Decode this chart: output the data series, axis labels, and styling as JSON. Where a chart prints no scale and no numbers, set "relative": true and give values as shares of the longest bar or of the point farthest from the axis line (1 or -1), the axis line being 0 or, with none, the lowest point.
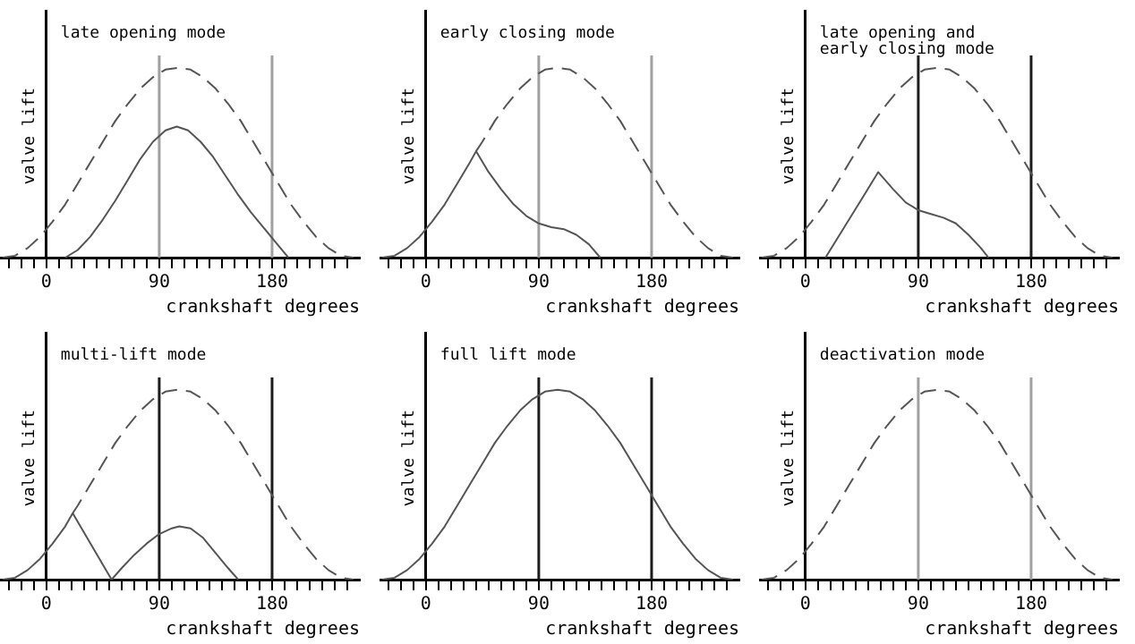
{
  "chart_data": [
    {
      "type": "line",
      "title": "late opening mode",
      "xlabel": "crankshaft degrees",
      "ylabel": "valve lift",
      "relative": true,
      "xlim": [
        -37,
        250
      ],
      "xticks": [
        {
          "value": -30,
          "label": null
        },
        {
          "value": -20,
          "label": null
        },
        {
          "value": -10,
          "label": null
        },
        0,
        {
          "value": 10,
          "label": null
        },
        {
          "value": 20,
          "label": null
        },
        {
          "value": 30,
          "label": null
        },
        {
          "value": 40,
          "label": null
        },
        {
          "value": 50,
          "label": null
        },
        {
          "value": 60,
          "label": null
        },
        {
          "value": 70,
          "label": null
        },
        {
          "value": 80,
          "label": null
        },
        90,
        {
          "value": 100,
          "label": null
        },
        {
          "value": 110,
          "label": null
        },
        {
          "value": 120,
          "label": null
        },
        {
          "value": 130,
          "label": null
        },
        {
          "value": 140,
          "label": null
        },
        {
          "value": 150,
          "label": null
        },
        {
          "value": 160,
          "label": null
        },
        {
          "value": 170,
          "label": null
        },
        180,
        {
          "value": 190,
          "label": null
        },
        {
          "value": 200,
          "label": null
        },
        {
          "value": 210,
          "label": null
        },
        {
          "value": 220,
          "label": null
        },
        {
          "value": 230,
          "label": null
        },
        {
          "value": 240,
          "label": null
        }
      ],
      "series": [
        {
          "color": "#555555",
          "line_style": "dashed",
          "x": [
            -35,
            -25,
            -15,
            -5,
            5,
            15,
            25,
            35,
            45,
            55,
            65,
            75,
            85,
            95,
            105,
            115,
            125,
            135,
            145,
            155,
            165,
            175,
            185,
            195,
            205,
            215,
            225,
            235,
            245
          ],
          "values": [
            0,
            0.01,
            0.05,
            0.11,
            0.19,
            0.28,
            0.39,
            0.5,
            0.61,
            0.72,
            0.81,
            0.89,
            0.95,
            0.99,
            1,
            0.99,
            0.95,
            0.89,
            0.81,
            0.72,
            0.61,
            0.5,
            0.39,
            0.28,
            0.19,
            0.11,
            0.05,
            0.01,
            0
          ]
        },
        {
          "color": "#555555",
          "line_style": "solid",
          "x": [
            15,
            25,
            35,
            45,
            55,
            65,
            75,
            85,
            95,
            104,
            113,
            123,
            133,
            143,
            153,
            163,
            173,
            183,
            193
          ],
          "values": [
            0,
            0.04,
            0.11,
            0.2,
            0.3,
            0.41,
            0.52,
            0.61,
            0.67,
            0.69,
            0.67,
            0.61,
            0.53,
            0.43,
            0.33,
            0.24,
            0.16,
            0.08,
            0
          ]
        }
      ],
      "ref_lines": [
        {
          "axis": "x",
          "value": 90,
          "color": "#a0a0a0"
        },
        {
          "axis": "x",
          "value": 180,
          "color": "#a0a0a0"
        }
      ]
    },
    {
      "type": "line",
      "title": "early closing mode",
      "xlabel": "crankshaft degrees",
      "ylabel": "valve lift",
      "relative": true,
      "xlim": [
        -37,
        250
      ],
      "xticks": [
        {
          "value": -30,
          "label": null
        },
        {
          "value": -20,
          "label": null
        },
        {
          "value": -10,
          "label": null
        },
        0,
        {
          "value": 10,
          "label": null
        },
        {
          "value": 20,
          "label": null
        },
        {
          "value": 30,
          "label": null
        },
        {
          "value": 40,
          "label": null
        },
        {
          "value": 50,
          "label": null
        },
        {
          "value": 60,
          "label": null
        },
        {
          "value": 70,
          "label": null
        },
        {
          "value": 80,
          "label": null
        },
        90,
        {
          "value": 100,
          "label": null
        },
        {
          "value": 110,
          "label": null
        },
        {
          "value": 120,
          "label": null
        },
        {
          "value": 130,
          "label": null
        },
        {
          "value": 140,
          "label": null
        },
        {
          "value": 150,
          "label": null
        },
        {
          "value": 160,
          "label": null
        },
        {
          "value": 170,
          "label": null
        },
        180,
        {
          "value": 190,
          "label": null
        },
        {
          "value": 200,
          "label": null
        },
        {
          "value": 210,
          "label": null
        },
        {
          "value": 220,
          "label": null
        },
        {
          "value": 230,
          "label": null
        },
        {
          "value": 240,
          "label": null
        }
      ],
      "series": [
        {
          "color": "#555555",
          "line_style": "dashed",
          "x": [
            40,
            45,
            55,
            65,
            75,
            85,
            95,
            105,
            115,
            125,
            135,
            145,
            155,
            165,
            175,
            185,
            195,
            205,
            215,
            225,
            235,
            245
          ],
          "values": [
            0.56,
            0.61,
            0.72,
            0.81,
            0.89,
            0.95,
            0.99,
            1,
            0.99,
            0.95,
            0.89,
            0.81,
            0.72,
            0.61,
            0.5,
            0.39,
            0.28,
            0.19,
            0.11,
            0.05,
            0.01,
            0
          ]
        },
        {
          "color": "#555555",
          "line_style": "solid",
          "x": [
            -35,
            -25,
            -15,
            -5,
            5,
            15,
            25,
            35,
            40,
            50,
            60,
            70,
            80,
            90,
            100,
            110,
            120,
            130,
            139
          ],
          "values": [
            0,
            0.01,
            0.05,
            0.11,
            0.19,
            0.28,
            0.39,
            0.5,
            0.56,
            0.45,
            0.36,
            0.28,
            0.22,
            0.18,
            0.16,
            0.15,
            0.12,
            0.07,
            0
          ]
        }
      ],
      "ref_lines": [
        {
          "axis": "x",
          "value": 90,
          "color": "#a0a0a0"
        },
        {
          "axis": "x",
          "value": 180,
          "color": "#a0a0a0"
        }
      ]
    },
    {
      "type": "line",
      "title": "late opening and\nearly closing mode",
      "xlabel": "crankshaft degrees",
      "ylabel": "valve lift",
      "relative": true,
      "xlim": [
        -37,
        250
      ],
      "xticks": [
        {
          "value": -30,
          "label": null
        },
        {
          "value": -20,
          "label": null
        },
        {
          "value": -10,
          "label": null
        },
        0,
        {
          "value": 10,
          "label": null
        },
        {
          "value": 20,
          "label": null
        },
        {
          "value": 30,
          "label": null
        },
        {
          "value": 40,
          "label": null
        },
        {
          "value": 50,
          "label": null
        },
        {
          "value": 60,
          "label": null
        },
        {
          "value": 70,
          "label": null
        },
        {
          "value": 80,
          "label": null
        },
        90,
        {
          "value": 100,
          "label": null
        },
        {
          "value": 110,
          "label": null
        },
        {
          "value": 120,
          "label": null
        },
        {
          "value": 130,
          "label": null
        },
        {
          "value": 140,
          "label": null
        },
        {
          "value": 150,
          "label": null
        },
        {
          "value": 160,
          "label": null
        },
        {
          "value": 170,
          "label": null
        },
        180,
        {
          "value": 190,
          "label": null
        },
        {
          "value": 200,
          "label": null
        },
        {
          "value": 210,
          "label": null
        },
        {
          "value": 220,
          "label": null
        },
        {
          "value": 230,
          "label": null
        },
        {
          "value": 240,
          "label": null
        }
      ],
      "series": [
        {
          "color": "#555555",
          "line_style": "dashed",
          "x": [
            -35,
            -25,
            -15,
            -5,
            5,
            15,
            25,
            35,
            45,
            55,
            65,
            75,
            85,
            95,
            105,
            115,
            125,
            135,
            145,
            155,
            165,
            175,
            185,
            195,
            205,
            215,
            225,
            235,
            245
          ],
          "values": [
            0,
            0.01,
            0.05,
            0.11,
            0.19,
            0.28,
            0.39,
            0.5,
            0.61,
            0.72,
            0.81,
            0.89,
            0.95,
            0.99,
            1,
            0.99,
            0.95,
            0.89,
            0.81,
            0.72,
            0.61,
            0.5,
            0.39,
            0.28,
            0.19,
            0.11,
            0.05,
            0.01,
            0
          ]
        },
        {
          "color": "#555555",
          "line_style": "solid",
          "x": [
            16,
            30,
            45,
            58,
            70,
            80,
            90,
            100,
            110,
            120,
            130,
            140,
            146
          ],
          "values": [
            0,
            0.15,
            0.31,
            0.45,
            0.36,
            0.29,
            0.25,
            0.23,
            0.21,
            0.18,
            0.12,
            0.05,
            0
          ]
        }
      ],
      "ref_lines": [
        {
          "axis": "x",
          "value": 90,
          "color": "#1c1c1c"
        },
        {
          "axis": "x",
          "value": 180,
          "color": "#1c1c1c"
        }
      ]
    },
    {
      "type": "line",
      "title": "multi-lift mode",
      "xlabel": "crankshaft degrees",
      "ylabel": "valve lift",
      "relative": true,
      "xlim": [
        -37,
        250
      ],
      "xticks": [
        {
          "value": -30,
          "label": null
        },
        {
          "value": -20,
          "label": null
        },
        {
          "value": -10,
          "label": null
        },
        0,
        {
          "value": 10,
          "label": null
        },
        {
          "value": 20,
          "label": null
        },
        {
          "value": 30,
          "label": null
        },
        {
          "value": 40,
          "label": null
        },
        {
          "value": 50,
          "label": null
        },
        {
          "value": 60,
          "label": null
        },
        {
          "value": 70,
          "label": null
        },
        {
          "value": 80,
          "label": null
        },
        90,
        {
          "value": 100,
          "label": null
        },
        {
          "value": 110,
          "label": null
        },
        {
          "value": 120,
          "label": null
        },
        {
          "value": 130,
          "label": null
        },
        {
          "value": 140,
          "label": null
        },
        {
          "value": 150,
          "label": null
        },
        {
          "value": 160,
          "label": null
        },
        {
          "value": 170,
          "label": null
        },
        180,
        {
          "value": 190,
          "label": null
        },
        {
          "value": 200,
          "label": null
        },
        {
          "value": 210,
          "label": null
        },
        {
          "value": 220,
          "label": null
        },
        {
          "value": 230,
          "label": null
        },
        {
          "value": 240,
          "label": null
        }
      ],
      "series": [
        {
          "color": "#555555",
          "line_style": "dashed",
          "x": [
            21,
            25,
            35,
            45,
            55,
            65,
            75,
            85,
            95,
            105,
            115,
            125,
            135,
            145,
            155,
            165,
            175,
            185,
            195,
            205,
            215,
            225,
            235,
            245
          ],
          "values": [
            0.35,
            0.39,
            0.5,
            0.61,
            0.72,
            0.81,
            0.89,
            0.95,
            0.99,
            1,
            0.99,
            0.95,
            0.89,
            0.81,
            0.72,
            0.61,
            0.5,
            0.39,
            0.28,
            0.19,
            0.11,
            0.05,
            0.01,
            0
          ]
        },
        {
          "color": "#555555",
          "line_style": "solid",
          "x": [
            -35,
            -25,
            -15,
            -5,
            5,
            15,
            21,
            52,
            60,
            70,
            80,
            90,
            100,
            106,
            115,
            125,
            135,
            145,
            153
          ],
          "values": [
            0,
            0.01,
            0.05,
            0.11,
            0.19,
            0.28,
            0.35,
            0,
            0.06,
            0.13,
            0.19,
            0.24,
            0.27,
            0.28,
            0.27,
            0.22,
            0.14,
            0.06,
            0
          ]
        }
      ],
      "ref_lines": [
        {
          "axis": "x",
          "value": 90,
          "color": "#1c1c1c"
        },
        {
          "axis": "x",
          "value": 180,
          "color": "#1c1c1c"
        }
      ]
    },
    {
      "type": "line",
      "title": "full lift mode",
      "xlabel": "crankshaft degrees",
      "ylabel": "valve lift",
      "relative": true,
      "xlim": [
        -37,
        250
      ],
      "xticks": [
        {
          "value": -30,
          "label": null
        },
        {
          "value": -20,
          "label": null
        },
        {
          "value": -10,
          "label": null
        },
        0,
        {
          "value": 10,
          "label": null
        },
        {
          "value": 20,
          "label": null
        },
        {
          "value": 30,
          "label": null
        },
        {
          "value": 40,
          "label": null
        },
        {
          "value": 50,
          "label": null
        },
        {
          "value": 60,
          "label": null
        },
        {
          "value": 70,
          "label": null
        },
        {
          "value": 80,
          "label": null
        },
        90,
        {
          "value": 100,
          "label": null
        },
        {
          "value": 110,
          "label": null
        },
        {
          "value": 120,
          "label": null
        },
        {
          "value": 130,
          "label": null
        },
        {
          "value": 140,
          "label": null
        },
        {
          "value": 150,
          "label": null
        },
        {
          "value": 160,
          "label": null
        },
        {
          "value": 170,
          "label": null
        },
        180,
        {
          "value": 190,
          "label": null
        },
        {
          "value": 200,
          "label": null
        },
        {
          "value": 210,
          "label": null
        },
        {
          "value": 220,
          "label": null
        },
        {
          "value": 230,
          "label": null
        },
        {
          "value": 240,
          "label": null
        }
      ],
      "series": [
        {
          "color": "#555555",
          "line_style": "solid",
          "x": [
            -35,
            -25,
            -15,
            -5,
            5,
            15,
            25,
            35,
            45,
            55,
            65,
            75,
            85,
            95,
            105,
            115,
            125,
            135,
            145,
            155,
            165,
            175,
            185,
            195,
            205,
            215,
            225,
            235,
            245
          ],
          "values": [
            0,
            0.01,
            0.05,
            0.11,
            0.19,
            0.28,
            0.39,
            0.5,
            0.61,
            0.72,
            0.81,
            0.89,
            0.95,
            0.99,
            1,
            0.99,
            0.95,
            0.89,
            0.81,
            0.72,
            0.61,
            0.5,
            0.39,
            0.28,
            0.19,
            0.11,
            0.05,
            0.01,
            0
          ]
        }
      ],
      "ref_lines": [
        {
          "axis": "x",
          "value": 90,
          "color": "#1c1c1c"
        },
        {
          "axis": "x",
          "value": 180,
          "color": "#1c1c1c"
        }
      ]
    },
    {
      "type": "line",
      "title": "deactivation mode",
      "xlabel": "crankshaft degrees",
      "ylabel": "valve lift",
      "relative": true,
      "xlim": [
        -37,
        250
      ],
      "xticks": [
        {
          "value": -30,
          "label": null
        },
        {
          "value": -20,
          "label": null
        },
        {
          "value": -10,
          "label": null
        },
        0,
        {
          "value": 10,
          "label": null
        },
        {
          "value": 20,
          "label": null
        },
        {
          "value": 30,
          "label": null
        },
        {
          "value": 40,
          "label": null
        },
        {
          "value": 50,
          "label": null
        },
        {
          "value": 60,
          "label": null
        },
        {
          "value": 70,
          "label": null
        },
        {
          "value": 80,
          "label": null
        },
        90,
        {
          "value": 100,
          "label": null
        },
        {
          "value": 110,
          "label": null
        },
        {
          "value": 120,
          "label": null
        },
        {
          "value": 130,
          "label": null
        },
        {
          "value": 140,
          "label": null
        },
        {
          "value": 150,
          "label": null
        },
        {
          "value": 160,
          "label": null
        },
        {
          "value": 170,
          "label": null
        },
        180,
        {
          "value": 190,
          "label": null
        },
        {
          "value": 200,
          "label": null
        },
        {
          "value": 210,
          "label": null
        },
        {
          "value": 220,
          "label": null
        },
        {
          "value": 230,
          "label": null
        },
        {
          "value": 240,
          "label": null
        }
      ],
      "series": [
        {
          "color": "#555555",
          "line_style": "dashed",
          "x": [
            -35,
            -25,
            -15,
            -5,
            5,
            15,
            25,
            35,
            45,
            55,
            65,
            75,
            85,
            95,
            105,
            115,
            125,
            135,
            145,
            155,
            165,
            175,
            185,
            195,
            205,
            215,
            225,
            235,
            245
          ],
          "values": [
            0,
            0.01,
            0.05,
            0.11,
            0.19,
            0.28,
            0.39,
            0.5,
            0.61,
            0.72,
            0.81,
            0.89,
            0.95,
            0.99,
            1,
            0.99,
            0.95,
            0.89,
            0.81,
            0.72,
            0.61,
            0.5,
            0.39,
            0.28,
            0.19,
            0.11,
            0.05,
            0.01,
            0
          ]
        }
      ],
      "ref_lines": [
        {
          "axis": "x",
          "value": 90,
          "color": "#a0a0a0"
        },
        {
          "axis": "x",
          "value": 180,
          "color": "#a0a0a0"
        }
      ]
    }
  ]
}
